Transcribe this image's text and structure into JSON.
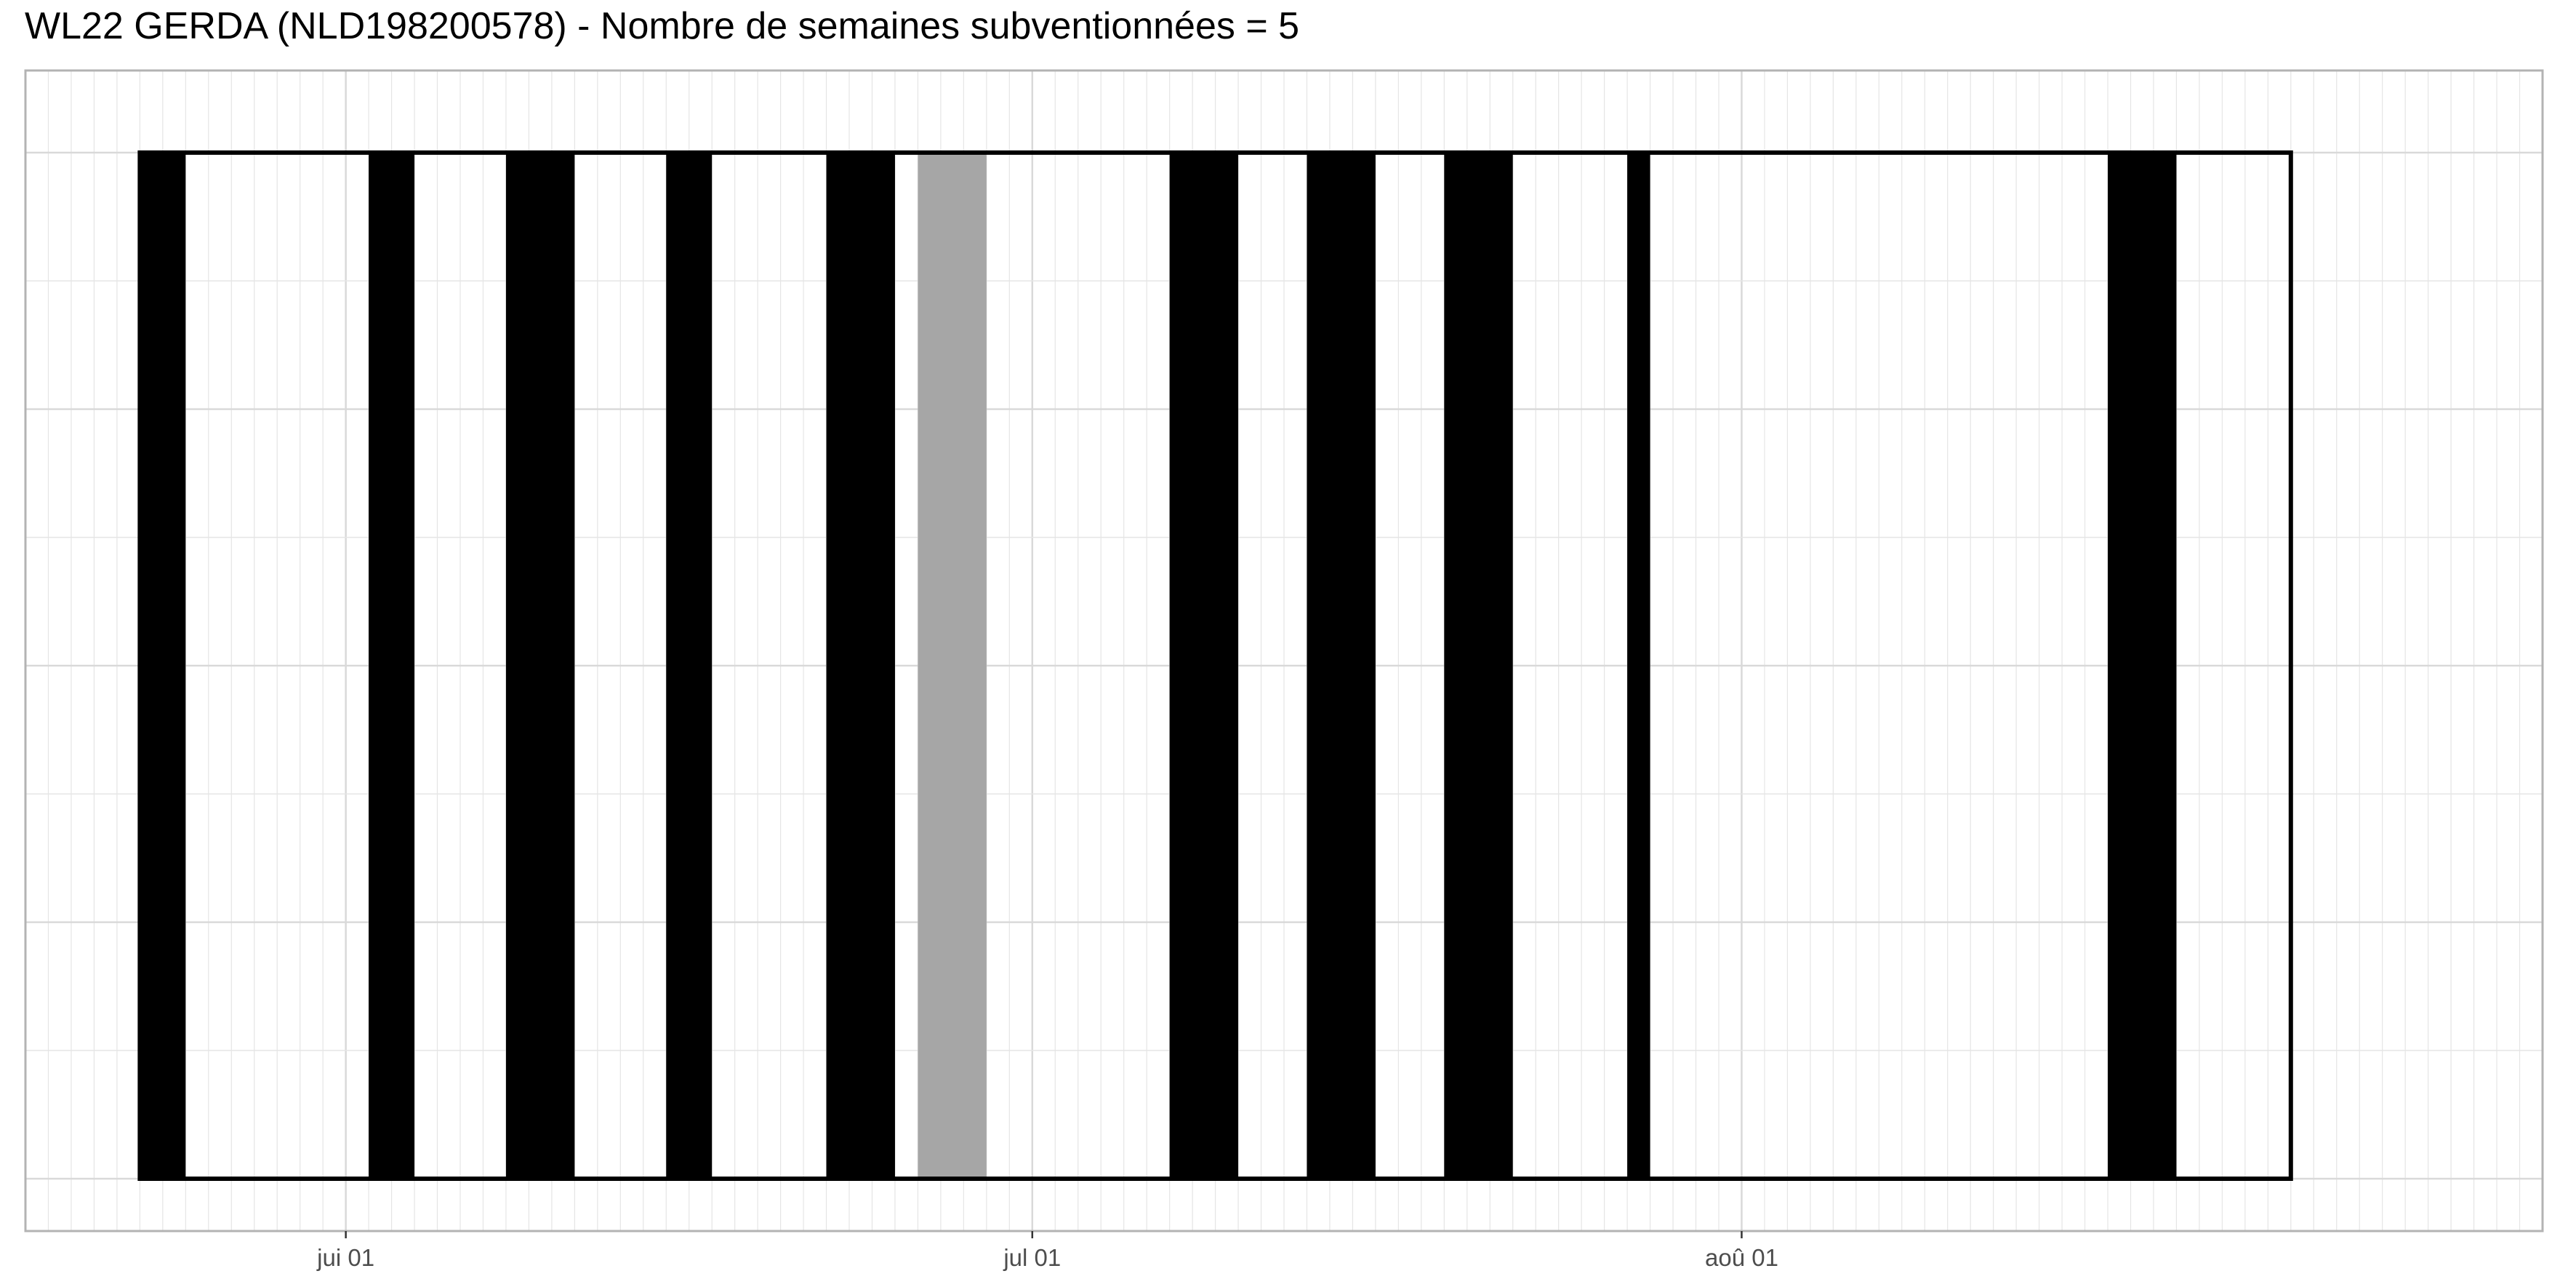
{
  "chart_data": {
    "type": "timeline",
    "title": "WL22 GERDA (NLD198200578) - Nombre de semaines subventionnées = 5",
    "xlabel": "",
    "ylabel": "",
    "x_axis": {
      "type": "date",
      "range": [
        "2022-05-18",
        "2022-09-05"
      ],
      "ticks": [
        {
          "date": "2022-06-01",
          "label": "jui 01"
        },
        {
          "date": "2022-07-01",
          "label": "jul 01"
        },
        {
          "date": "2022-08-01",
          "label": "aoû 01"
        }
      ]
    },
    "outline_span": [
      "2022-05-23",
      "2022-08-25"
    ],
    "grid": true,
    "legend": "none",
    "colors": {
      "event": "#000000",
      "highlight": "#a6a6a6",
      "outline": "#000000",
      "grid": "#e5e5e5",
      "panel_border": "#b3b3b3"
    },
    "events": [
      {
        "start": "2022-05-23",
        "end": "2022-05-25",
        "color": "#000000"
      },
      {
        "start": "2022-06-02",
        "end": "2022-06-04",
        "color": "#000000"
      },
      {
        "start": "2022-06-08",
        "end": "2022-06-11",
        "color": "#000000"
      },
      {
        "start": "2022-06-15",
        "end": "2022-06-17",
        "color": "#000000"
      },
      {
        "start": "2022-06-22",
        "end": "2022-06-25",
        "color": "#000000"
      },
      {
        "start": "2022-06-26",
        "end": "2022-06-29",
        "color": "#a6a6a6"
      },
      {
        "start": "2022-07-07",
        "end": "2022-07-10",
        "color": "#000000"
      },
      {
        "start": "2022-07-13",
        "end": "2022-07-16",
        "color": "#000000"
      },
      {
        "start": "2022-07-19",
        "end": "2022-07-22",
        "color": "#000000"
      },
      {
        "start": "2022-07-27",
        "end": "2022-07-28",
        "color": "#000000"
      },
      {
        "start": "2022-08-17",
        "end": "2022-08-20",
        "color": "#000000"
      }
    ]
  }
}
